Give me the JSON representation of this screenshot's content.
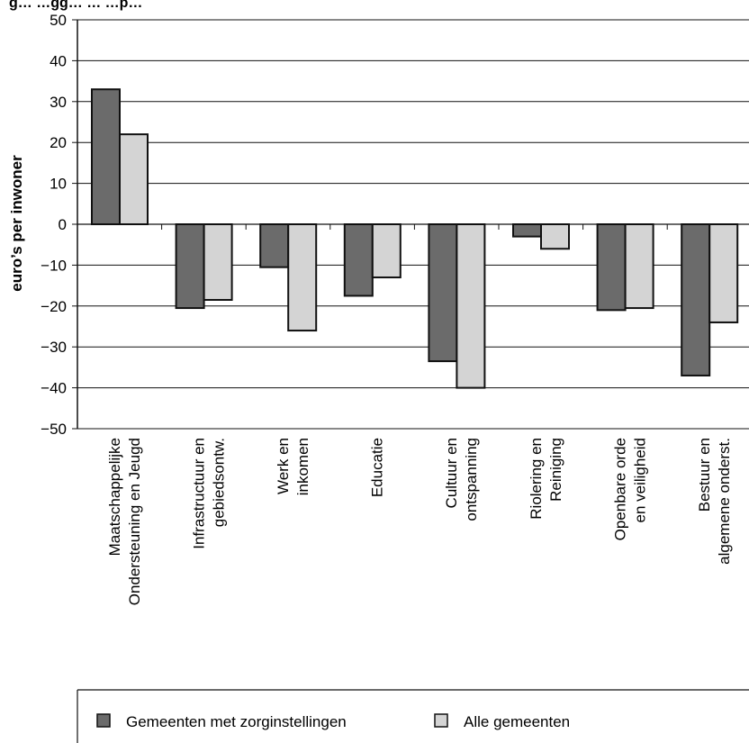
{
  "chart_data": {
    "type": "bar",
    "title": "g… …gg… … …p…",
    "ylabel": "euro’s per inwoner",
    "ylim": [
      -50,
      50
    ],
    "yticks": [
      "50",
      "40",
      "30",
      "20",
      "10",
      "0",
      "−10",
      "−20",
      "−30",
      "−40",
      "−50"
    ],
    "grid": true,
    "categories": [
      [
        "Maatschappelijke",
        "Ondersteuning en Jeugd"
      ],
      [
        "Infrastructuur en",
        "gebiedsontw."
      ],
      [
        "Werk en",
        "inkomen"
      ],
      [
        "Educatie"
      ],
      [
        "Cultuur en",
        "ontspanning"
      ],
      [
        "Riolering en",
        "Reiniging"
      ],
      [
        "Openbare orde",
        "en veiligheid"
      ],
      [
        "Bestuur en",
        "algemene onderst."
      ]
    ],
    "series": [
      {
        "name": "Gemeenten met zorginstellingen",
        "color": "#6b6b6b",
        "values": [
          33,
          -20.5,
          -10.5,
          -17.5,
          -33.5,
          -3,
          -21,
          -37
        ]
      },
      {
        "name": "Alle gemeenten",
        "color": "#d4d4d4",
        "values": [
          22,
          -18.5,
          -26,
          -13,
          -40,
          -6,
          -20.5,
          -24
        ]
      }
    ],
    "legend_position": "bottom"
  }
}
